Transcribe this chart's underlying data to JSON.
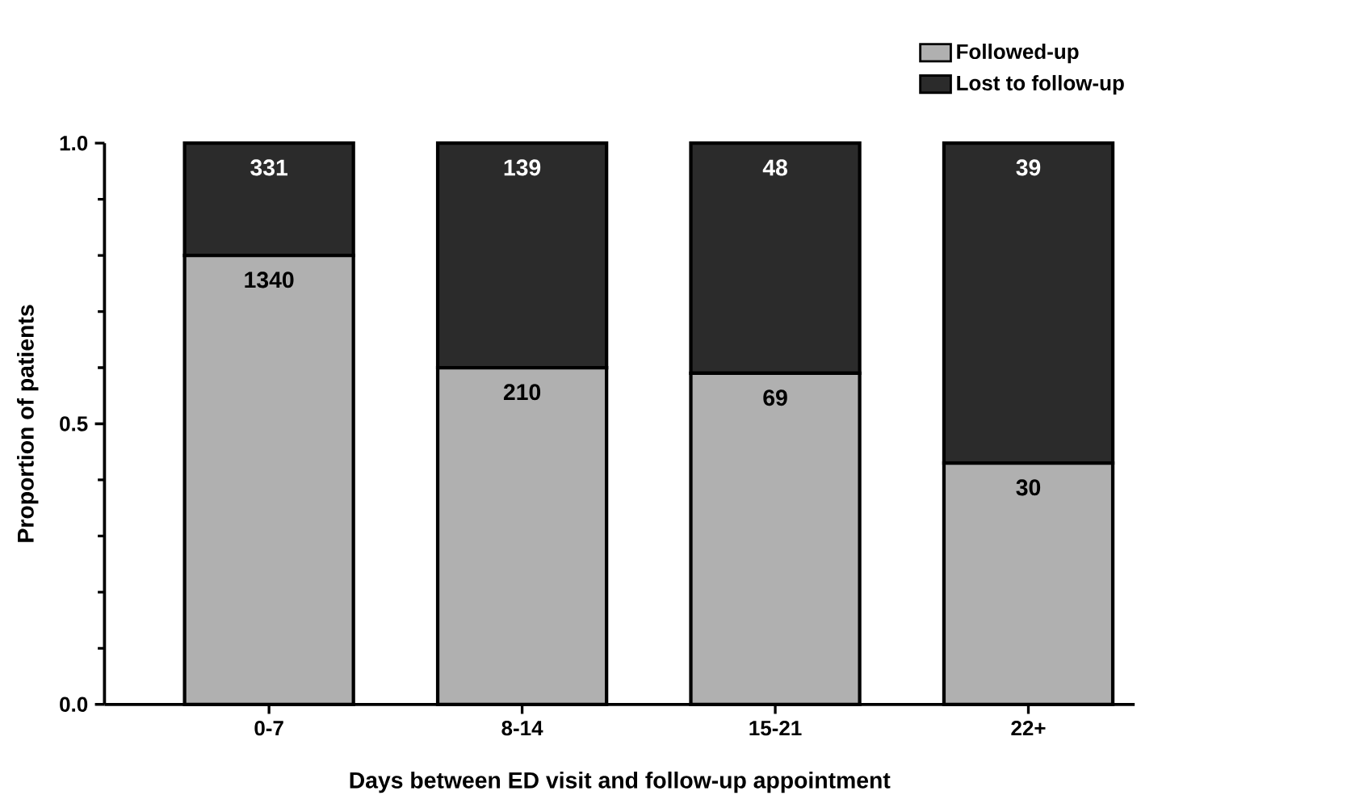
{
  "chart_data": {
    "type": "bar",
    "stacked": true,
    "xlabel": "Days between ED visit and follow-up appointment",
    "ylabel": "Proportion of patients",
    "categories": [
      "0-7",
      "8-14",
      "15-21",
      "22+"
    ],
    "series": [
      {
        "name": "Followed-up",
        "color": "#b0b0b0",
        "values": [
          0.8,
          0.6,
          0.59,
          0.43
        ]
      },
      {
        "name": "Lost to follow-up",
        "color": "#2b2b2b",
        "values": [
          0.2,
          0.4,
          0.41,
          0.57
        ]
      }
    ],
    "annotations": [
      {
        "text": "1340",
        "x": "0-7",
        "y": 0.8
      },
      {
        "text": "210",
        "x": "8-14",
        "y": 0.6
      },
      {
        "text": "69",
        "x": "15-21",
        "y": 0.59
      },
      {
        "text": "30",
        "x": "22+",
        "y": 0.43
      },
      {
        "text": "331",
        "x": "0-7",
        "y": 1.0
      },
      {
        "text": "139",
        "x": "8-14",
        "y": 1.0
      },
      {
        "text": "48",
        "x": "15-21",
        "y": 1.0
      },
      {
        "text": "39",
        "x": "22+",
        "y": 1.0
      }
    ],
    "ylim": [
      0,
      1
    ],
    "yticks": [
      {
        "value": 0,
        "label": "0.0"
      },
      {
        "value": 0.1,
        "label": null
      },
      {
        "value": 0.2,
        "label": null
      },
      {
        "value": 0.3,
        "label": null
      },
      {
        "value": 0.4,
        "label": null
      },
      0.5,
      {
        "value": 0.6,
        "label": null
      },
      {
        "value": 0.7,
        "label": null
      },
      {
        "value": 0.8,
        "label": null
      },
      {
        "value": 0.9,
        "label": null
      },
      {
        "value": 1,
        "label": "1.0"
      }
    ],
    "legend": "top right",
    "grid": false
  }
}
